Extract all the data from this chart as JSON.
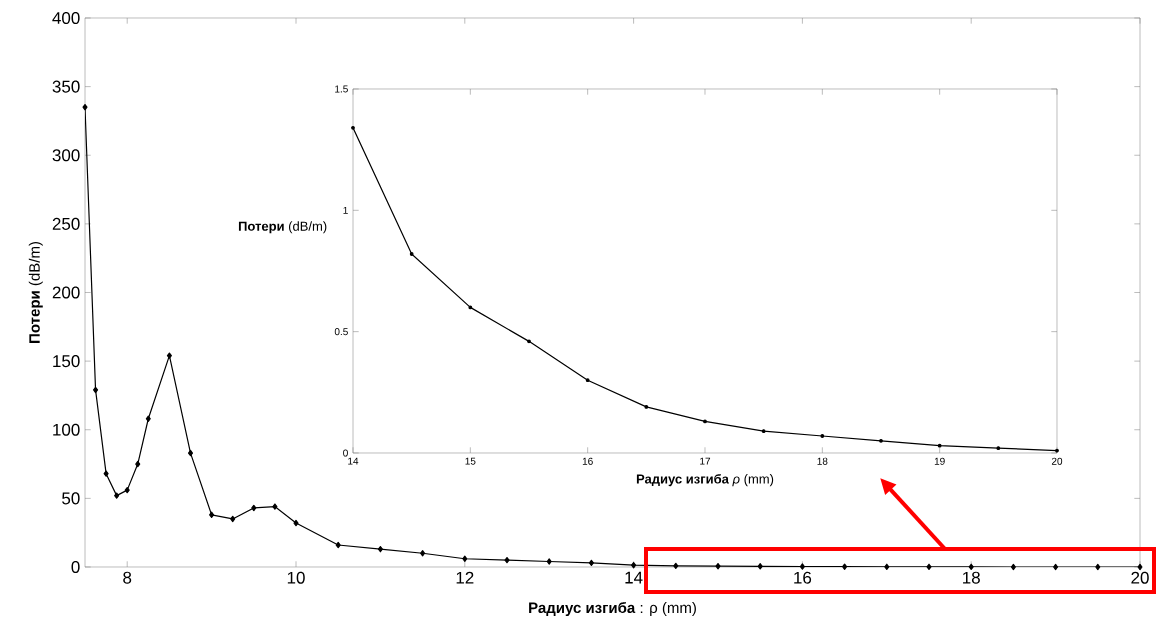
{
  "chart_data": [
    {
      "type": "line",
      "xlabel": "**Радиус изгиба** : ρ (mm)",
      "ylabel": "**Потери** (dB/m)",
      "x": [
        7.5,
        7.625,
        7.75,
        7.875,
        8,
        8.125,
        8.25,
        8.5,
        8.75,
        9,
        9.25,
        9.5,
        9.75,
        10,
        10.5,
        11,
        11.5,
        12,
        12.5,
        13,
        13.5,
        14,
        14.5,
        15,
        15.5,
        16,
        16.5,
        17,
        17.5,
        18,
        18.5,
        19,
        19.5,
        20
      ],
      "series": [
        {
          "color": "#000000",
          "values": [
            335,
            129,
            68,
            52,
            56,
            75,
            108,
            154,
            83,
            38,
            35,
            43,
            44,
            32,
            16,
            13,
            10,
            6,
            5,
            4,
            3,
            1.3,
            0.8,
            0.6,
            0.5,
            0.3,
            0.2,
            0.1,
            0.1,
            0.1,
            0,
            0,
            0,
            0
          ]
        }
      ],
      "xlim": [
        7.5,
        20
      ],
      "ylim": [
        0,
        400
      ],
      "xticks": [
        8,
        10,
        12,
        14,
        16,
        18,
        20
      ],
      "yticks": [
        0,
        50,
        100,
        150,
        200,
        250,
        300,
        350,
        400
      ],
      "marker": "diamond"
    },
    {
      "type": "line",
      "xlabel": "**Радиус изгиба** *ρ* (mm)",
      "ylabel": "**Потери** (dB/m)",
      "x": [
        14,
        14.5,
        15,
        15.5,
        16,
        16.5,
        17,
        17.5,
        18,
        18.5,
        19,
        19.5,
        20
      ],
      "series": [
        {
          "color": "#000000",
          "values": [
            1.34,
            0.82,
            0.6,
            0.46,
            0.3,
            0.19,
            0.13,
            0.09,
            0.07,
            0.05,
            0.03,
            0.02,
            0.01
          ]
        }
      ],
      "xlim": [
        14,
        20
      ],
      "ylim": [
        0,
        1.5
      ],
      "xticks": [
        14,
        15,
        16,
        17,
        18,
        19,
        20
      ],
      "yticks": [
        0,
        0.5,
        1,
        1.5
      ],
      "marker": "circle"
    }
  ]
}
